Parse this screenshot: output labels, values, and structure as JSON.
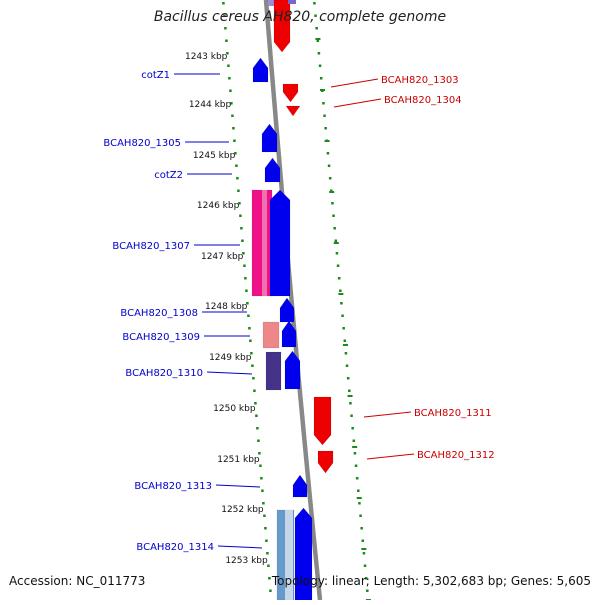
{
  "title": "Bacillus cereus AH820, complete genome",
  "footer": {
    "accession": "Accession: NC_011773",
    "summary": "Topology: linear; Length: 5,302,683 bp; Genes: 5,605"
  },
  "colors": {
    "forward_gene": "#0000ee",
    "reverse_gene": "#ee0000",
    "left_label": "#0000cc",
    "right_label": "#cc0000",
    "track": "#888888",
    "tick": "#1a8a1a",
    "rna_pink": "#ee1188",
    "rna_salmon": "#ee8888",
    "rna_slate": "#443388"
  },
  "scale_labels": [
    "1243 kbp",
    "1244 kbp",
    "1245 kbp",
    "1246 kbp",
    "1247 kbp",
    "1248 kbp",
    "1249 kbp",
    "1250 kbp",
    "1251 kbp",
    "1252 kbp",
    "1253 kbp"
  ],
  "left_genes": [
    "cotZ1",
    "BCAH820_1305",
    "cotZ2",
    "BCAH820_1307",
    "BCAH820_1308",
    "BCAH820_1309",
    "BCAH820_1310",
    "BCAH820_1313",
    "BCAH820_1314"
  ],
  "right_genes": [
    "BCAH820_1303",
    "BCAH820_1304",
    "BCAH820_1311",
    "BCAH820_1312"
  ]
}
